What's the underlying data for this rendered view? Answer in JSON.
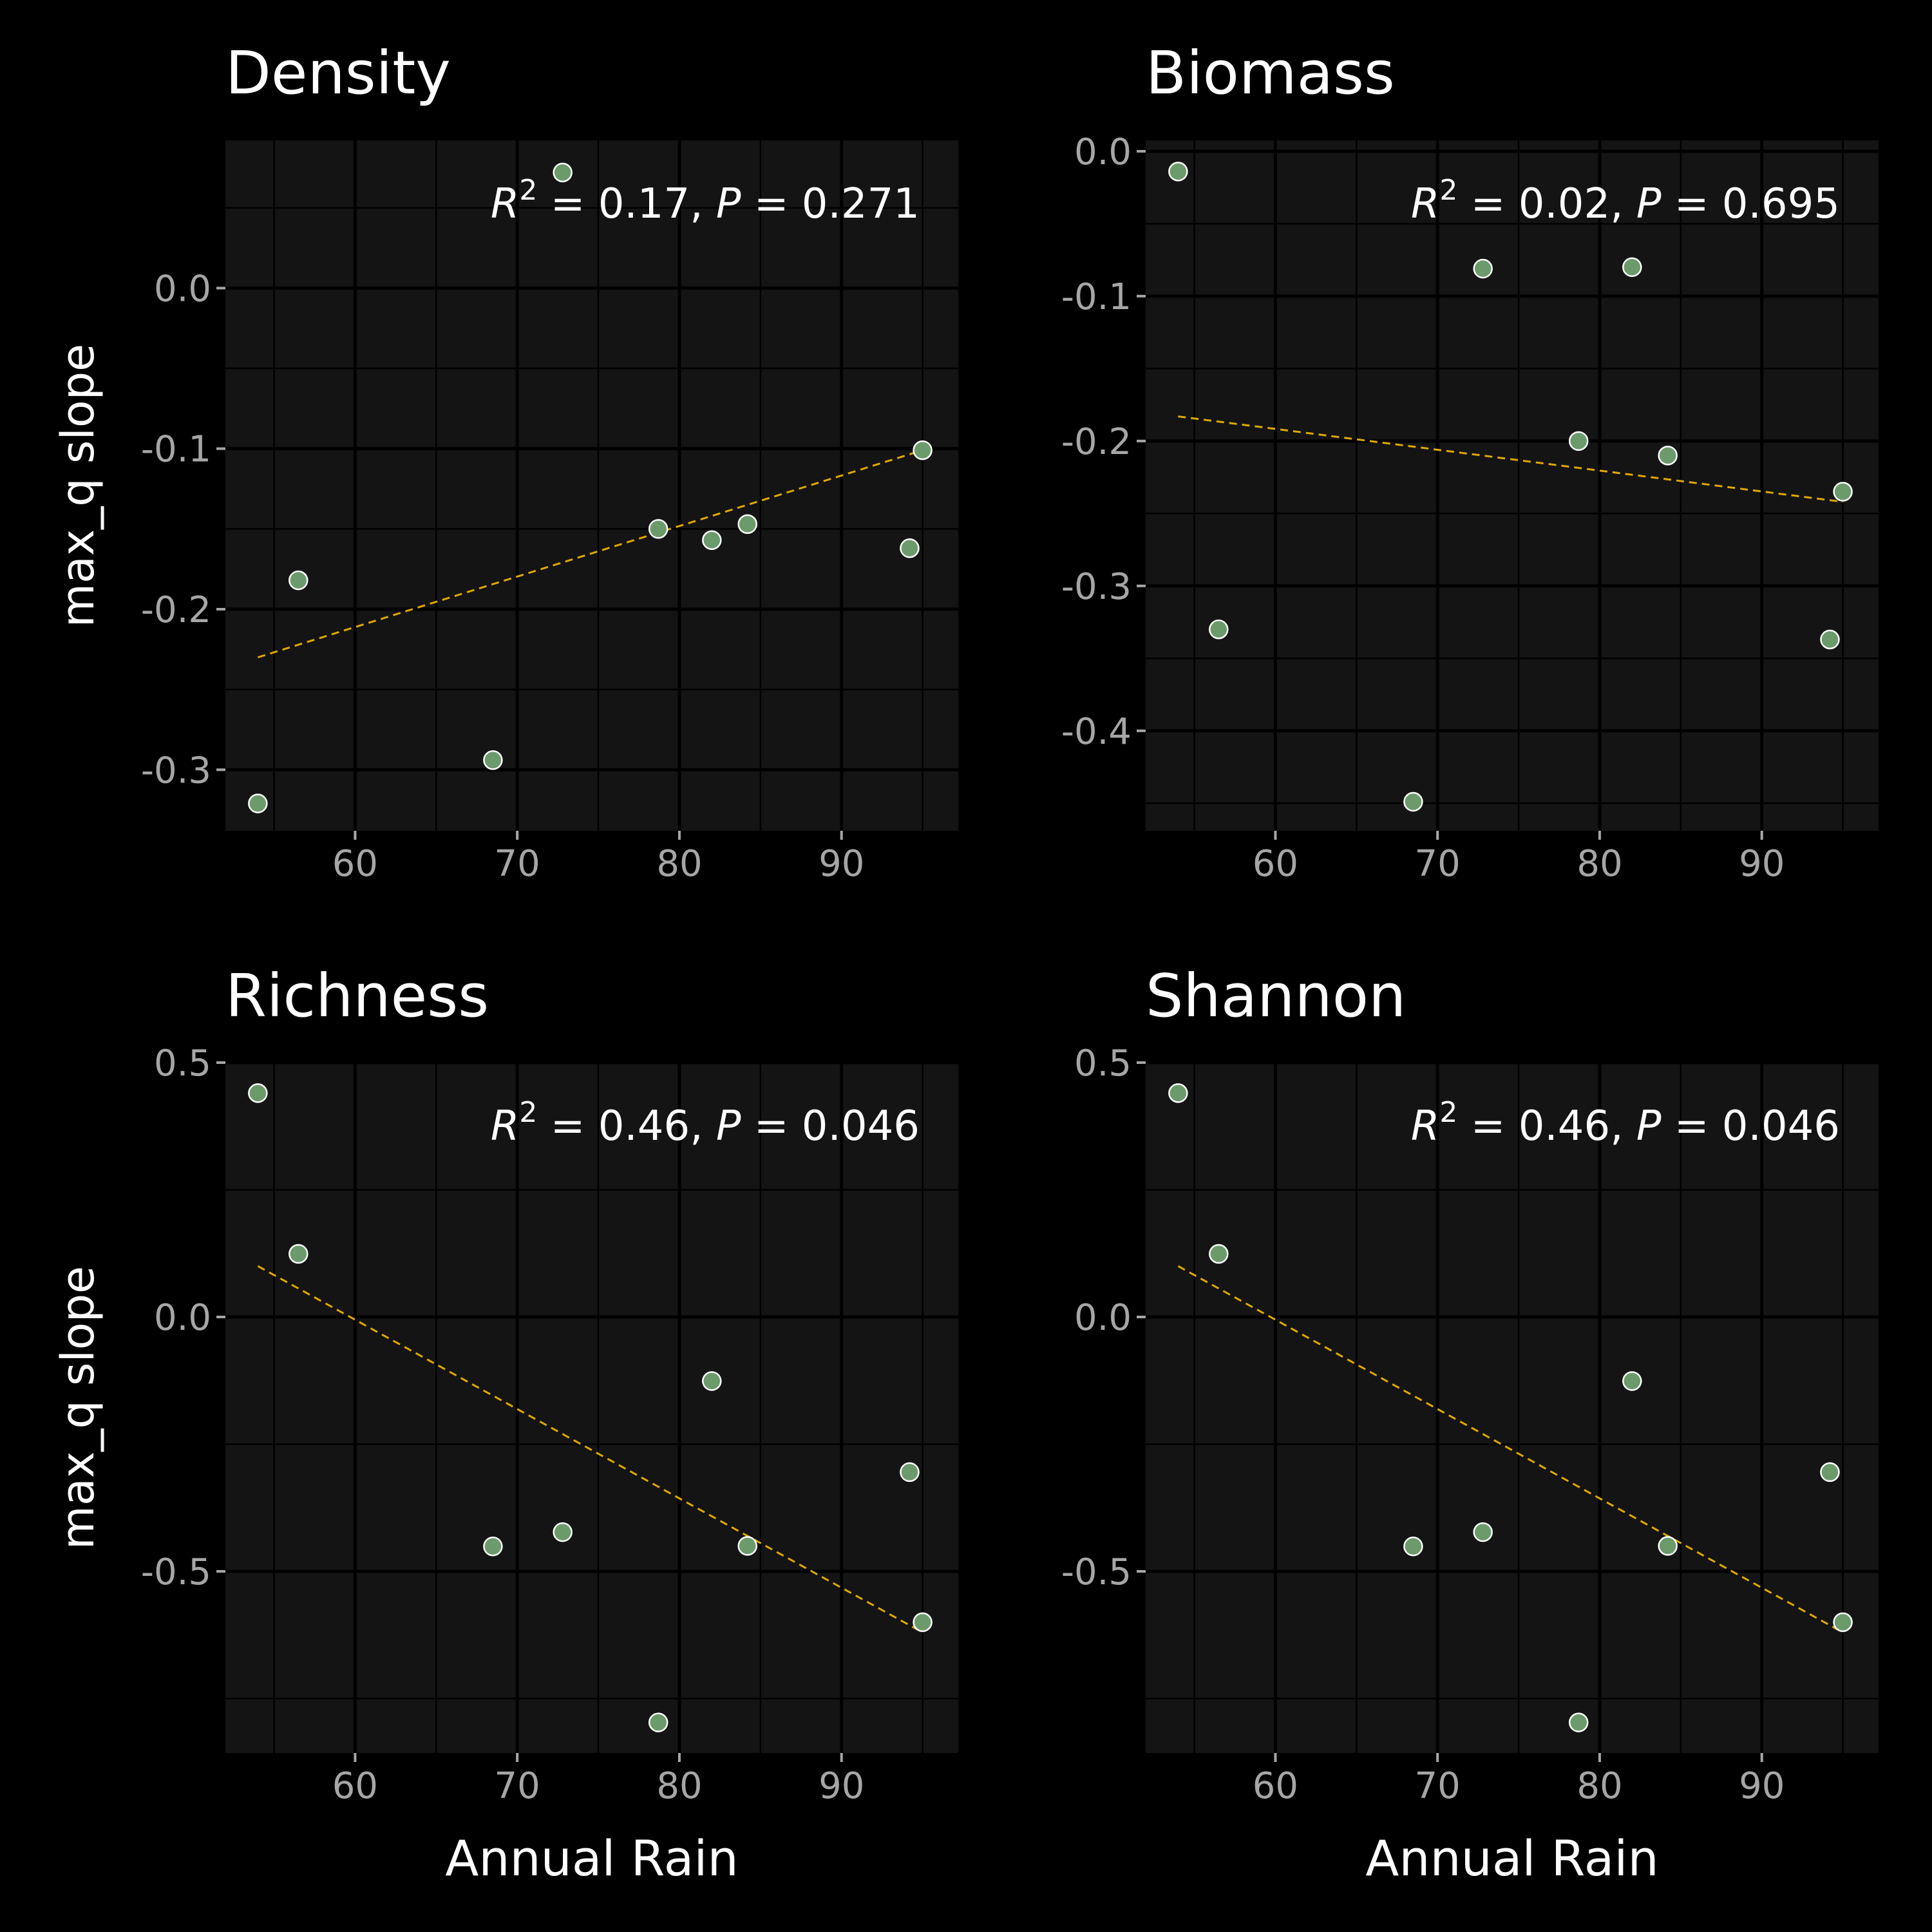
{
  "figure": {
    "background": "#000000"
  },
  "style": {
    "panel_bg": "#141414",
    "grid_color": "#000000",
    "point_fill": "#6B9A6B",
    "point_stroke": "#FFFFFF",
    "fit_color": "#E0A800",
    "tick_label_color": "#A6A6A6",
    "text_color": "#FFFFFF"
  },
  "chart_data": [
    {
      "type": "scatter",
      "title": "Density",
      "xlabel": "",
      "ylabel": "max_q slope",
      "x": [
        54,
        56.5,
        68.5,
        72.8,
        78.7,
        82,
        84.2,
        94.2,
        95
      ],
      "y": [
        -0.321,
        -0.182,
        -0.294,
        0.072,
        -0.15,
        -0.157,
        -0.147,
        -0.162,
        -0.101
      ],
      "fit": {
        "x": [
          54,
          95
        ],
        "y": [
          -0.23,
          -0.101
        ],
        "linestyle": "dashed"
      },
      "annotation": {
        "r_label": "R",
        "r_sup": "2",
        "r_value": " = 0.17, ",
        "p_label": "P",
        "p_value": " = 0.271"
      },
      "xlim": [
        52,
        97.2
      ],
      "ylim": [
        -0.338,
        0.092
      ],
      "xticks": [
        60,
        70,
        80,
        90
      ],
      "xtick_labels": [
        "60",
        "70",
        "80",
        "90"
      ],
      "yticks": [
        -0.3,
        -0.2,
        -0.1,
        0.0
      ],
      "ytick_labels": [
        "-0.3",
        "-0.2",
        "-0.1",
        "0.0"
      ],
      "grid": true
    },
    {
      "type": "scatter",
      "title": "Biomass",
      "xlabel": "",
      "ylabel": "",
      "x": [
        54,
        56.5,
        68.5,
        72.8,
        78.7,
        82,
        84.2,
        94.2,
        95
      ],
      "y": [
        -0.014,
        -0.33,
        -0.449,
        -0.081,
        -0.2,
        -0.08,
        -0.21,
        -0.337,
        -0.235
      ],
      "fit": {
        "x": [
          54,
          95
        ],
        "y": [
          -0.183,
          -0.242
        ],
        "linestyle": "dashed"
      },
      "annotation": {
        "r_label": "R",
        "r_sup": "2",
        "r_value": " = 0.02, ",
        "p_label": "P",
        "p_value": " = 0.695"
      },
      "xlim": [
        52,
        97.2
      ],
      "ylim": [
        -0.469,
        0.0075
      ],
      "xticks": [
        60,
        70,
        80,
        90
      ],
      "xtick_labels": [
        "60",
        "70",
        "80",
        "90"
      ],
      "yticks": [
        -0.4,
        -0.3,
        -0.2,
        -0.1,
        0.0
      ],
      "ytick_labels": [
        "-0.4",
        "-0.3",
        "-0.2",
        "-0.1",
        "0.0"
      ],
      "grid": true
    },
    {
      "type": "scatter",
      "title": "Richness",
      "xlabel": "Annual Rain",
      "ylabel": "max_q slope",
      "x": [
        54,
        56.5,
        68.5,
        72.8,
        78.7,
        82,
        84.2,
        94.2,
        95
      ],
      "y": [
        0.44,
        0.124,
        -0.451,
        -0.423,
        -0.797,
        -0.126,
        -0.45,
        -0.305,
        -0.6
      ],
      "fit": {
        "x": [
          54,
          95
        ],
        "y": [
          0.1,
          -0.62
        ],
        "linestyle": "dashed"
      },
      "annotation": {
        "r_label": "R",
        "r_sup": "2",
        "r_value": " = 0.46, ",
        "p_label": "P",
        "p_value": " = 0.046"
      },
      "xlim": [
        52,
        97.2
      ],
      "ylim": [
        -0.857,
        0.5
      ],
      "xticks": [
        60,
        70,
        80,
        90
      ],
      "xtick_labels": [
        "60",
        "70",
        "80",
        "90"
      ],
      "yticks": [
        -0.5,
        0.0,
        0.5
      ],
      "ytick_labels": [
        "-0.5",
        "0.0",
        "0.5"
      ],
      "grid": true
    },
    {
      "type": "scatter",
      "title": "Shannon",
      "xlabel": "Annual Rain",
      "ylabel": "",
      "x": [
        54,
        56.5,
        68.5,
        72.8,
        78.7,
        82,
        84.2,
        94.2,
        95
      ],
      "y": [
        0.44,
        0.124,
        -0.451,
        -0.423,
        -0.797,
        -0.126,
        -0.45,
        -0.305,
        -0.6
      ],
      "fit": {
        "x": [
          54,
          95
        ],
        "y": [
          0.1,
          -0.62
        ],
        "linestyle": "dashed"
      },
      "annotation": {
        "r_label": "R",
        "r_sup": "2",
        "r_value": " = 0.46, ",
        "p_label": "P",
        "p_value": " = 0.046"
      },
      "xlim": [
        52,
        97.2
      ],
      "ylim": [
        -0.857,
        0.5
      ],
      "xticks": [
        60,
        70,
        80,
        90
      ],
      "xtick_labels": [
        "60",
        "70",
        "80",
        "90"
      ],
      "yticks": [
        -0.5,
        0.0,
        0.5
      ],
      "ytick_labels": [
        "-0.5",
        "0.0",
        "0.5"
      ],
      "grid": true
    }
  ]
}
